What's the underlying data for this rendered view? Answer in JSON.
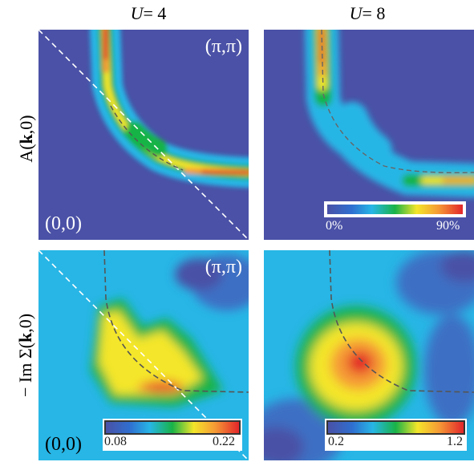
{
  "columns": [
    {
      "prefix": "U",
      "suffix": "= 4"
    },
    {
      "prefix": "U",
      "suffix": "= 8"
    }
  ],
  "rows": [
    {
      "label_pre": "A(",
      "label_bold": "k",
      "label_post": ",0)"
    },
    {
      "label_pre": "− Im Σ(",
      "label_bold": "k",
      "label_post": ",0)"
    }
  ],
  "corner_labels": {
    "top_left_pi": "(π,π)",
    "top_left_origin": "(0,0)",
    "bottom_left_pi": "(π,π)",
    "bottom_left_origin": "(0,0)"
  },
  "colorbars": {
    "top_right": {
      "min": "0%",
      "max": "90%"
    },
    "bottom_left": {
      "min": "0.08",
      "max": "0.22"
    },
    "bottom_right": {
      "min": "0.2",
      "max": "1.2"
    }
  },
  "colors": {
    "background": "#4a51a6",
    "cyan": "#27b6e6",
    "green": "#19b347",
    "yellow": "#f4e62a",
    "orange": "#f59a35",
    "red": "#e3262b",
    "dashed_white": "#ffffff",
    "dashed_gray": "#6b6b6b"
  }
}
